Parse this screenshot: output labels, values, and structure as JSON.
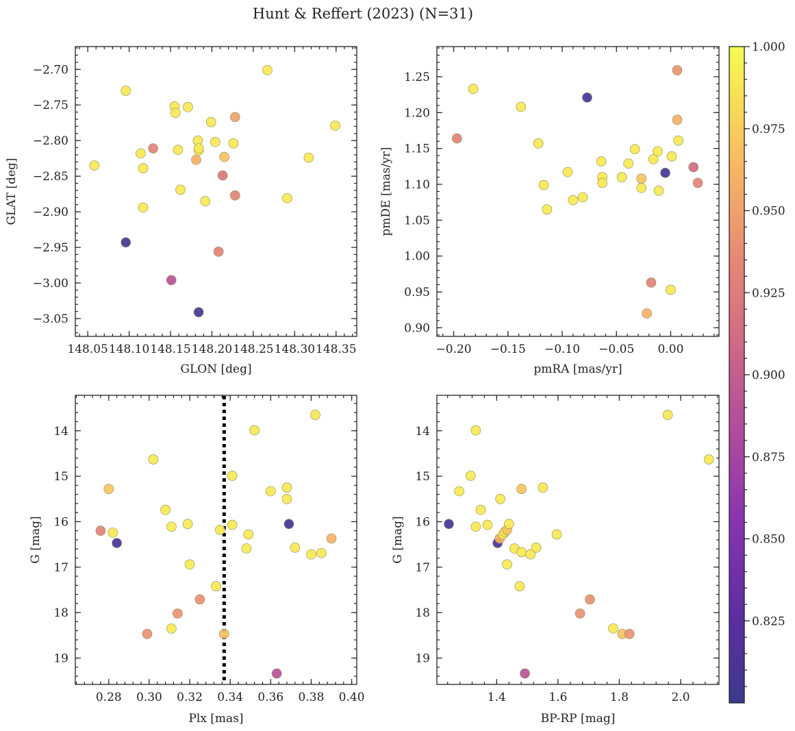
{
  "title": "Hunt & Reffert (2023) (N=31)",
  "colorbar": {
    "range": [
      0.8,
      1.0
    ],
    "ticks": [
      0.825,
      0.85,
      0.875,
      0.9,
      0.925,
      0.95,
      0.975,
      1.0
    ],
    "tick_labels": [
      "0.825",
      "0.850",
      "0.875",
      "0.900",
      "0.925",
      "0.950",
      "0.975",
      "1.000"
    ],
    "colormap": "plasma"
  },
  "vline_plx": 0.337,
  "chart_data": [
    {
      "type": "scatter",
      "id": "p1",
      "xlabel": "GLON [deg]",
      "ylabel": "GLAT [deg]",
      "xlim": [
        148.035,
        148.375
      ],
      "ylim": [
        -3.075,
        -2.668
      ],
      "xticks": [
        148.05,
        148.1,
        148.15,
        148.2,
        148.25,
        148.3,
        148.35
      ],
      "xtick_labels": [
        "148.05",
        "148.10",
        "148.15",
        "148.20",
        "148.25",
        "148.30",
        "148.35"
      ],
      "yticks": [
        -3.05,
        -3.0,
        -2.95,
        -2.9,
        -2.85,
        -2.8,
        -2.75,
        -2.7
      ],
      "ytick_labels": [
        "−3.05",
        "−3.00",
        "−2.95",
        "−2.90",
        "−2.85",
        "−2.80",
        "−2.75",
        "−2.70"
      ],
      "invert_y": false,
      "points": [
        {
          "x": 148.058,
          "y": -2.835,
          "c": 0.99
        },
        {
          "x": 148.096,
          "y": -2.73,
          "c": 0.99
        },
        {
          "x": 148.096,
          "y": -2.943,
          "c": 0.81
        },
        {
          "x": 148.114,
          "y": -2.818,
          "c": 0.99
        },
        {
          "x": 148.117,
          "y": -2.839,
          "c": 0.99
        },
        {
          "x": 148.117,
          "y": -2.894,
          "c": 0.99
        },
        {
          "x": 148.129,
          "y": -2.811,
          "c": 0.93
        },
        {
          "x": 148.151,
          "y": -2.996,
          "c": 0.89
        },
        {
          "x": 148.155,
          "y": -2.752,
          "c": 0.99
        },
        {
          "x": 148.156,
          "y": -2.761,
          "c": 0.99
        },
        {
          "x": 148.159,
          "y": -2.813,
          "c": 0.99
        },
        {
          "x": 148.162,
          "y": -2.869,
          "c": 0.99
        },
        {
          "x": 148.171,
          "y": -2.753,
          "c": 0.99
        },
        {
          "x": 148.181,
          "y": -2.827,
          "c": 0.96
        },
        {
          "x": 148.183,
          "y": -2.8,
          "c": 0.99
        },
        {
          "x": 148.184,
          "y": -2.814,
          "c": 0.99
        },
        {
          "x": 148.184,
          "y": -2.811,
          "c": 0.99
        },
        {
          "x": 148.184,
          "y": -3.041,
          "c": 0.81
        },
        {
          "x": 148.192,
          "y": -2.885,
          "c": 0.99
        },
        {
          "x": 148.199,
          "y": -2.774,
          "c": 0.99
        },
        {
          "x": 148.204,
          "y": -2.802,
          "c": 0.99
        },
        {
          "x": 148.208,
          "y": -2.956,
          "c": 0.93
        },
        {
          "x": 148.213,
          "y": -2.849,
          "c": 0.92
        },
        {
          "x": 148.215,
          "y": -2.823,
          "c": 0.97
        },
        {
          "x": 148.226,
          "y": -2.804,
          "c": 0.99
        },
        {
          "x": 148.228,
          "y": -2.767,
          "c": 0.95
        },
        {
          "x": 148.228,
          "y": -2.877,
          "c": 0.93
        },
        {
          "x": 148.267,
          "y": -2.701,
          "c": 0.99
        },
        {
          "x": 148.291,
          "y": -2.881,
          "c": 0.99
        },
        {
          "x": 148.317,
          "y": -2.824,
          "c": 0.99
        },
        {
          "x": 148.349,
          "y": -2.779,
          "c": 0.99
        }
      ]
    },
    {
      "type": "scatter",
      "id": "p2",
      "xlabel": "pmRA [mas/yr]",
      "ylabel": "pmDE [mas/yr]",
      "xlim": [
        -0.2155,
        0.0445
      ],
      "ylim": [
        0.888,
        1.292
      ],
      "xticks": [
        -0.2,
        -0.15,
        -0.1,
        -0.05,
        0.0
      ],
      "xtick_labels": [
        "−0.20",
        "−0.15",
        "−0.10",
        "−0.05",
        "0.00"
      ],
      "yticks": [
        0.9,
        0.95,
        1.0,
        1.05,
        1.1,
        1.15,
        1.2,
        1.25
      ],
      "ytick_labels": [
        "0.90",
        "0.95",
        "1.00",
        "1.05",
        "1.10",
        "1.15",
        "1.20",
        "1.25"
      ],
      "invert_y": false,
      "points": [
        {
          "x": -0.197,
          "y": 1.164,
          "c": 0.93
        },
        {
          "x": -0.182,
          "y": 1.233,
          "c": 0.99
        },
        {
          "x": -0.138,
          "y": 1.208,
          "c": 0.99
        },
        {
          "x": -0.122,
          "y": 1.157,
          "c": 0.99
        },
        {
          "x": -0.117,
          "y": 1.099,
          "c": 0.99
        },
        {
          "x": -0.114,
          "y": 1.065,
          "c": 0.99
        },
        {
          "x": -0.095,
          "y": 1.117,
          "c": 0.99
        },
        {
          "x": -0.09,
          "y": 1.078,
          "c": 0.99
        },
        {
          "x": -0.081,
          "y": 1.082,
          "c": 0.99
        },
        {
          "x": -0.077,
          "y": 1.221,
          "c": 0.81
        },
        {
          "x": -0.064,
          "y": 1.132,
          "c": 0.99
        },
        {
          "x": -0.063,
          "y": 1.11,
          "c": 0.99
        },
        {
          "x": -0.063,
          "y": 1.102,
          "c": 0.99
        },
        {
          "x": -0.045,
          "y": 1.11,
          "c": 0.99
        },
        {
          "x": -0.039,
          "y": 1.129,
          "c": 0.99
        },
        {
          "x": -0.033,
          "y": 1.149,
          "c": 0.99
        },
        {
          "x": -0.027,
          "y": 1.108,
          "c": 0.97
        },
        {
          "x": -0.027,
          "y": 1.095,
          "c": 0.99
        },
        {
          "x": -0.022,
          "y": 0.92,
          "c": 0.96
        },
        {
          "x": -0.018,
          "y": 0.963,
          "c": 0.93
        },
        {
          "x": -0.016,
          "y": 1.135,
          "c": 0.99
        },
        {
          "x": -0.012,
          "y": 1.146,
          "c": 0.99
        },
        {
          "x": -0.011,
          "y": 1.091,
          "c": 0.99
        },
        {
          "x": -0.005,
          "y": 1.116,
          "c": 0.81
        },
        {
          "x": 0.0,
          "y": 0.953,
          "c": 0.99
        },
        {
          "x": 0.001,
          "y": 1.139,
          "c": 0.99
        },
        {
          "x": 0.006,
          "y": 1.259,
          "c": 0.94
        },
        {
          "x": 0.006,
          "y": 1.19,
          "c": 0.96
        },
        {
          "x": 0.007,
          "y": 1.161,
          "c": 0.99
        },
        {
          "x": 0.021,
          "y": 1.124,
          "c": 0.91
        },
        {
          "x": 0.025,
          "y": 1.102,
          "c": 0.93
        }
      ]
    },
    {
      "type": "scatter",
      "id": "p3",
      "xlabel": "Plx [mas]",
      "ylabel": "G [mag]",
      "xlim": [
        0.2635,
        0.4025
      ],
      "ylim": [
        13.22,
        19.58
      ],
      "xticks": [
        0.28,
        0.3,
        0.32,
        0.34,
        0.36,
        0.38,
        0.4
      ],
      "xtick_labels": [
        "0.28",
        "0.30",
        "0.32",
        "0.34",
        "0.36",
        "0.38",
        "0.40"
      ],
      "yticks": [
        14,
        15,
        16,
        17,
        18,
        19
      ],
      "ytick_labels": [
        "14",
        "15",
        "16",
        "17",
        "18",
        "19"
      ],
      "invert_y": true,
      "points": [
        {
          "x": 0.276,
          "y": 16.2,
          "c": 0.93
        },
        {
          "x": 0.28,
          "y": 15.28,
          "c": 0.97
        },
        {
          "x": 0.282,
          "y": 16.24,
          "c": 0.99
        },
        {
          "x": 0.284,
          "y": 16.47,
          "c": 0.81
        },
        {
          "x": 0.299,
          "y": 18.47,
          "c": 0.94
        },
        {
          "x": 0.302,
          "y": 14.63,
          "c": 0.99
        },
        {
          "x": 0.308,
          "y": 15.74,
          "c": 0.99
        },
        {
          "x": 0.311,
          "y": 16.11,
          "c": 0.99
        },
        {
          "x": 0.311,
          "y": 18.35,
          "c": 0.99
        },
        {
          "x": 0.314,
          "y": 18.02,
          "c": 0.94
        },
        {
          "x": 0.319,
          "y": 16.05,
          "c": 0.99
        },
        {
          "x": 0.32,
          "y": 16.94,
          "c": 0.99
        },
        {
          "x": 0.325,
          "y": 17.71,
          "c": 0.94
        },
        {
          "x": 0.333,
          "y": 17.42,
          "c": 0.99
        },
        {
          "x": 0.335,
          "y": 16.18,
          "c": 0.99
        },
        {
          "x": 0.337,
          "y": 18.47,
          "c": 0.97
        },
        {
          "x": 0.341,
          "y": 14.99,
          "c": 0.99
        },
        {
          "x": 0.341,
          "y": 16.07,
          "c": 0.99
        },
        {
          "x": 0.348,
          "y": 16.59,
          "c": 0.99
        },
        {
          "x": 0.349,
          "y": 16.28,
          "c": 0.99
        },
        {
          "x": 0.352,
          "y": 13.99,
          "c": 0.99
        },
        {
          "x": 0.36,
          "y": 15.33,
          "c": 0.99
        },
        {
          "x": 0.363,
          "y": 19.34,
          "c": 0.89
        },
        {
          "x": 0.368,
          "y": 15.25,
          "c": 0.99
        },
        {
          "x": 0.368,
          "y": 15.5,
          "c": 0.99
        },
        {
          "x": 0.369,
          "y": 16.05,
          "c": 0.81
        },
        {
          "x": 0.372,
          "y": 16.57,
          "c": 0.99
        },
        {
          "x": 0.38,
          "y": 16.72,
          "c": 0.99
        },
        {
          "x": 0.382,
          "y": 13.65,
          "c": 0.99
        },
        {
          "x": 0.385,
          "y": 16.69,
          "c": 0.99
        },
        {
          "x": 0.39,
          "y": 16.37,
          "c": 0.96
        }
      ]
    },
    {
      "type": "scatter",
      "id": "p4",
      "xlabel": "BP-RP [mag]",
      "ylabel": "G [mag]",
      "xlim": [
        1.205,
        2.125
      ],
      "ylim": [
        13.22,
        19.58
      ],
      "xticks": [
        1.4,
        1.6,
        1.8,
        2.0
      ],
      "xtick_labels": [
        "1.4",
        "1.6",
        "1.8",
        "2.0"
      ],
      "yticks": [
        14,
        15,
        16,
        17,
        18,
        19
      ],
      "ytick_labels": [
        "14",
        "15",
        "16",
        "17",
        "18",
        "19"
      ],
      "invert_y": true,
      "points": [
        {
          "x": 1.244,
          "y": 16.05,
          "c": 0.81
        },
        {
          "x": 1.278,
          "y": 15.33,
          "c": 0.99
        },
        {
          "x": 1.315,
          "y": 14.99,
          "c": 0.99
        },
        {
          "x": 1.332,
          "y": 13.99,
          "c": 0.99
        },
        {
          "x": 1.332,
          "y": 16.11,
          "c": 0.99
        },
        {
          "x": 1.348,
          "y": 15.74,
          "c": 0.99
        },
        {
          "x": 1.37,
          "y": 16.07,
          "c": 0.99
        },
        {
          "x": 1.403,
          "y": 16.47,
          "c": 0.81
        },
        {
          "x": 1.41,
          "y": 16.37,
          "c": 0.96
        },
        {
          "x": 1.412,
          "y": 15.5,
          "c": 0.99
        },
        {
          "x": 1.421,
          "y": 16.28,
          "c": 0.99
        },
        {
          "x": 1.427,
          "y": 16.22,
          "c": 0.99
        },
        {
          "x": 1.434,
          "y": 16.18,
          "c": 0.97
        },
        {
          "x": 1.434,
          "y": 16.94,
          "c": 0.99
        },
        {
          "x": 1.44,
          "y": 16.05,
          "c": 0.99
        },
        {
          "x": 1.458,
          "y": 16.59,
          "c": 0.99
        },
        {
          "x": 1.475,
          "y": 17.42,
          "c": 0.99
        },
        {
          "x": 1.481,
          "y": 15.28,
          "c": 0.97
        },
        {
          "x": 1.481,
          "y": 16.67,
          "c": 0.99
        },
        {
          "x": 1.492,
          "y": 19.34,
          "c": 0.89
        },
        {
          "x": 1.51,
          "y": 16.72,
          "c": 0.99
        },
        {
          "x": 1.529,
          "y": 16.57,
          "c": 0.99
        },
        {
          "x": 1.551,
          "y": 15.25,
          "c": 0.99
        },
        {
          "x": 1.596,
          "y": 16.28,
          "c": 0.99
        },
        {
          "x": 1.672,
          "y": 18.02,
          "c": 0.94
        },
        {
          "x": 1.704,
          "y": 17.71,
          "c": 0.94
        },
        {
          "x": 1.78,
          "y": 18.35,
          "c": 0.99
        },
        {
          "x": 1.81,
          "y": 18.47,
          "c": 0.97
        },
        {
          "x": 1.833,
          "y": 18.47,
          "c": 0.94
        },
        {
          "x": 1.958,
          "y": 13.65,
          "c": 0.99
        },
        {
          "x": 2.092,
          "y": 14.63,
          "c": 0.99
        }
      ]
    }
  ]
}
